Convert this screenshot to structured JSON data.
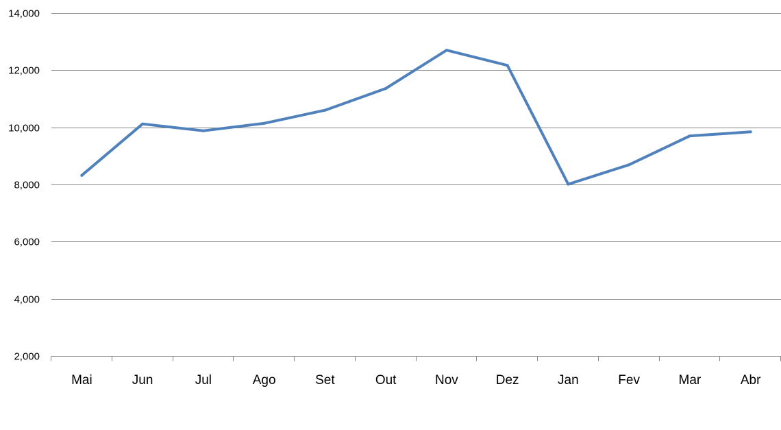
{
  "chart_data": {
    "type": "line",
    "title": "",
    "xlabel": "",
    "ylabel": "",
    "categories": [
      "Mai",
      "Jun",
      "Jul",
      "Ago",
      "Set",
      "Out",
      "Nov",
      "Dez",
      "Jan",
      "Fev",
      "Mar",
      "Abr"
    ],
    "series": [
      {
        "color": "#4F81BD",
        "values": [
          8320,
          10120,
          9880,
          10140,
          10600,
          11360,
          12700,
          12170,
          8010,
          8690,
          9700,
          9840
        ]
      }
    ],
    "ylim": [
      2000,
      14000
    ],
    "yticks": [
      2000,
      4000,
      6000,
      8000,
      10000,
      12000,
      14000
    ],
    "ytick_labels": [
      "2,000",
      "4,000",
      "6,000",
      "8,000",
      "10,000",
      "12,000",
      "14,000"
    ],
    "grid": true,
    "legend": "none"
  }
}
